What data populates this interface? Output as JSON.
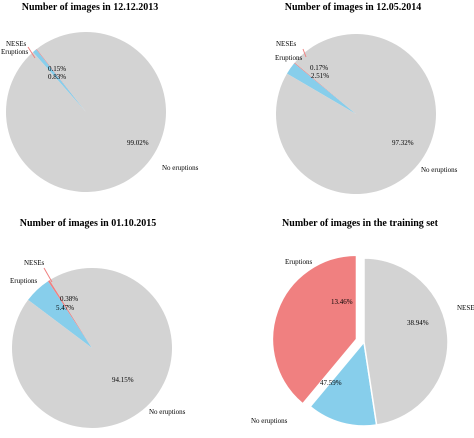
{
  "chart_data": [
    {
      "type": "pie",
      "title": "Number of images in 12.12.2013",
      "slices": [
        {
          "label": "NESEs",
          "value": 0.15,
          "value_label": "0.15%",
          "color": "#f08080"
        },
        {
          "label": "Eruptions",
          "value": 0.83,
          "value_label": "0.83%",
          "color": "#87ceeb"
        },
        {
          "label": "No eruptions",
          "value": 99.02,
          "value_label": "99.02%",
          "color": "#d3d3d3"
        }
      ]
    },
    {
      "type": "pie",
      "title": "Number of images in 12.05.2014",
      "slices": [
        {
          "label": "NESEs",
          "value": 0.17,
          "value_label": "0.17%",
          "color": "#f08080"
        },
        {
          "label": "Eruptions",
          "value": 2.51,
          "value_label": "2.51%",
          "color": "#87ceeb"
        },
        {
          "label": "No eruptions",
          "value": 97.32,
          "value_label": "97.32%",
          "color": "#d3d3d3"
        }
      ]
    },
    {
      "type": "pie",
      "title": "Number of images in 01.10.2015",
      "slices": [
        {
          "label": "NESEs",
          "value": 0.38,
          "value_label": "0.38%",
          "color": "#f08080"
        },
        {
          "label": "Eruptions",
          "value": 5.47,
          "value_label": "5.47%",
          "color": "#87ceeb"
        },
        {
          "label": "No eruptions",
          "value": 94.15,
          "value_label": "94.15%",
          "color": "#d3d3d3"
        }
      ]
    },
    {
      "type": "pie",
      "title": "Number of images in the training set",
      "exploded": true,
      "slices": [
        {
          "label": "NESEs",
          "value": 38.94,
          "value_label": "38.94%",
          "color": "#f08080"
        },
        {
          "label": "Eruptions",
          "value": 13.46,
          "value_label": "13.46%",
          "color": "#87ceeb"
        },
        {
          "label": "No eruptions",
          "value": 47.59,
          "value_label": "47.59%",
          "color": "#d3d3d3"
        }
      ]
    }
  ]
}
